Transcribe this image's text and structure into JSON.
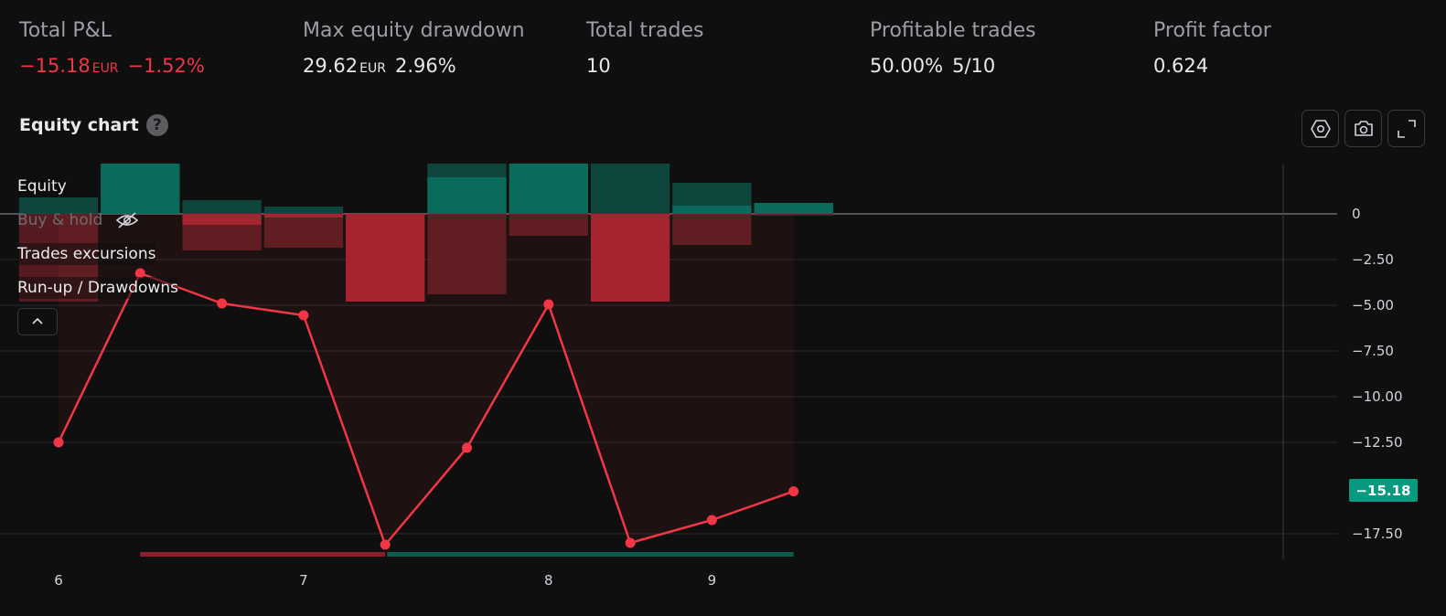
{
  "stats": [
    {
      "label": "Total P&L",
      "value": "−15.18",
      "currency": "EUR",
      "extra": "−1.52%",
      "tone": "neg"
    },
    {
      "label": "Max equity drawdown",
      "value": "29.62",
      "currency": "EUR",
      "extra": "2.96%",
      "tone": "light"
    },
    {
      "label": "Total trades",
      "value": "10",
      "currency": "",
      "extra": "",
      "tone": "light"
    },
    {
      "label": "Profitable trades",
      "value": "50.00%",
      "currency": "",
      "extra": "5/10",
      "tone": "light"
    },
    {
      "label": "Profit factor",
      "value": "0.624",
      "currency": "",
      "extra": "",
      "tone": "light"
    }
  ],
  "chart_header": {
    "title": "Equity chart",
    "help_icon": "question-icon"
  },
  "toolbar": {
    "icons": [
      "settings-icon",
      "camera-icon",
      "fullscreen-icon"
    ]
  },
  "legend": {
    "items": [
      "Equity",
      "Buy & hold",
      "Trades excursions",
      "Run-up / Drawdowns"
    ],
    "hidden_icon": "eye-off-icon",
    "collapse_icon": "chevron-up-icon"
  },
  "colors": {
    "equity": "#f23645",
    "green": "#089981",
    "red": "#f23645",
    "background": "#0f0f0f"
  },
  "last_value_label": "−15.18",
  "chart_data": {
    "type": "line",
    "title": "Equity chart",
    "y_range": [
      -18.7,
      2.3
    ],
    "y_ticks": [
      0,
      -2.5,
      -5,
      -7.5,
      -10,
      -12.5,
      -17.5
    ],
    "y_tick_labels": [
      "0",
      "−2.50",
      "−5.00",
      "−7.50",
      "−10.00",
      "−12.50",
      "−17.50"
    ],
    "x_range": [
      0,
      13
    ],
    "x_ticks": [
      {
        "x": 0,
        "label": "6"
      },
      {
        "x": 3,
        "label": "7"
      },
      {
        "x": 6,
        "label": "8"
      },
      {
        "x": 8,
        "label": "9"
      }
    ],
    "equity": {
      "name": "Equity",
      "x": [
        0,
        1,
        2,
        3,
        4,
        5,
        6,
        7,
        8,
        9
      ],
      "y": [
        -12.5,
        -3.25,
        -4.9,
        -5.55,
        -18.1,
        -12.8,
        -4.95,
        -18,
        -16.75,
        -15.18
      ]
    },
    "run_up_drawdown": [
      {
        "runup": 0.9,
        "drawdown": -4.8
      },
      {
        "runup": 2.75,
        "drawdown": 0
      },
      {
        "runup": 0.75,
        "drawdown": -2
      },
      {
        "runup": 0.4,
        "drawdown": -1.85
      },
      {
        "runup": 0,
        "drawdown": -4.8
      },
      {
        "runup": 2.75,
        "drawdown": -4.4
      },
      {
        "runup": 2.75,
        "drawdown": -1.2
      },
      {
        "runup": 2.75,
        "drawdown": -4.8
      },
      {
        "runup": 1.7,
        "drawdown": -1.7
      },
      {
        "runup": 0.6,
        "drawdown": -0.1
      }
    ],
    "trade_pnl": [
      {
        "value": 0,
        "result": "loss"
      },
      {
        "value": 2.75,
        "result": "win"
      },
      {
        "value": -0.6,
        "result": "loss"
      },
      {
        "value": -0.2,
        "result": "loss"
      },
      {
        "value": -4.8,
        "result": "loss"
      },
      {
        "value": 2,
        "result": "win"
      },
      {
        "value": 2.75,
        "result": "win"
      },
      {
        "value": -4.8,
        "result": "loss"
      },
      {
        "value": 0.45,
        "result": "win"
      },
      {
        "value": 0.6,
        "result": "win"
      }
    ],
    "zero_line": 0,
    "last_value": -15.18
  }
}
